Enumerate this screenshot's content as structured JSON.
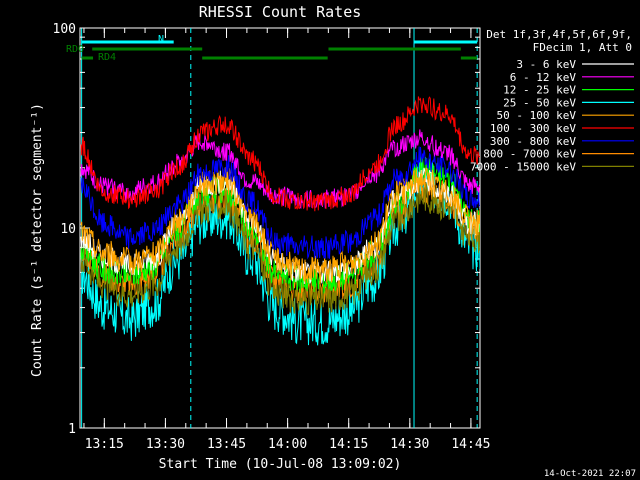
{
  "chart_data": {
    "type": "line",
    "title": "RHESSI Count Rates",
    "xlabel": "Start Time (10-Jul-08 13:09:02)",
    "ylabel": "Count Rate (s⁻¹ detector segment⁻¹)",
    "ylog": true,
    "ylim": [
      1,
      100
    ],
    "xlim_minutes_after_1309": [
      0,
      37.5
    ],
    "x_tick_labels": [
      "13:15",
      "13:30",
      "13:45",
      "14:00",
      "14:15",
      "14:30",
      "14:45"
    ],
    "x_tick_minutes": [
      5.97,
      20.97,
      35.97,
      50.97,
      65.97,
      80.97,
      95.97
    ],
    "y_tick_labels": [
      "1",
      "10",
      "100"
    ],
    "y_tick_values": [
      1,
      10,
      100
    ],
    "x_minutes_after_1309": [
      0,
      6,
      12,
      18,
      24,
      30,
      36,
      42,
      48,
      54,
      60,
      66,
      72,
      78,
      84,
      90,
      96
    ],
    "series": [
      {
        "name": "3 - 6 keV",
        "color": "#ffffff",
        "values": [
          9.0,
          7.2,
          6.5,
          7.0,
          10.5,
          16.5,
          17.0,
          11.0,
          6.8,
          6.0,
          6.0,
          6.3,
          8.0,
          14.5,
          17.5,
          15.0,
          10.5
        ]
      },
      {
        "name": "6 - 12 keV",
        "color": "#ff00ff",
        "values": [
          20.0,
          16.0,
          15.0,
          16.5,
          21.0,
          27.0,
          24.0,
          17.0,
          14.5,
          14.0,
          14.0,
          14.5,
          18.5,
          25.5,
          28.0,
          23.5,
          16.0
        ]
      },
      {
        "name": "12 - 25 keV",
        "color": "#00ff00",
        "values": [
          8.0,
          6.2,
          5.8,
          6.5,
          10.0,
          15.0,
          15.5,
          10.0,
          6.0,
          5.5,
          5.5,
          5.8,
          7.5,
          13.5,
          20.0,
          18.0,
          11.0
        ]
      },
      {
        "name": "25 - 50 keV",
        "color": "#00ffff",
        "values": [
          6.0,
          4.0,
          3.5,
          4.2,
          7.0,
          11.0,
          11.5,
          7.2,
          4.0,
          3.4,
          3.4,
          3.8,
          5.5,
          10.5,
          17.0,
          15.0,
          8.0
        ]
      },
      {
        "name": "50 - 100 keV",
        "color": "#ffa500",
        "values": [
          9.5,
          7.5,
          6.8,
          7.3,
          10.8,
          16.8,
          17.2,
          11.2,
          7.0,
          6.2,
          6.2,
          6.5,
          8.2,
          14.8,
          17.8,
          15.2,
          10.8
        ]
      },
      {
        "name": "100 - 300 keV",
        "color": "#ff0000",
        "values": [
          26.0,
          15.0,
          14.0,
          15.0,
          20.0,
          30.0,
          33.0,
          22.0,
          14.5,
          13.5,
          13.5,
          14.5,
          20.0,
          33.0,
          42.0,
          37.0,
          23.0
        ]
      },
      {
        "name": "300 - 800 keV",
        "color": "#0000ff",
        "values": [
          16.0,
          10.5,
          9.0,
          9.5,
          13.0,
          19.0,
          20.5,
          13.5,
          8.5,
          8.0,
          8.0,
          8.5,
          11.0,
          18.0,
          22.5,
          20.0,
          14.0
        ]
      },
      {
        "name": "800 - 7000 keV",
        "color": "#ff8c00",
        "values": [
          8.0,
          5.8,
          5.2,
          5.8,
          9.0,
          13.5,
          14.0,
          9.0,
          5.3,
          4.9,
          4.9,
          5.2,
          6.8,
          12.0,
          15.5,
          14.0,
          10.0
        ]
      },
      {
        "name": "7000 - 15000 keV",
        "color": "#808000",
        "values": [
          7.0,
          5.2,
          4.7,
          5.2,
          8.2,
          12.5,
          13.0,
          8.2,
          4.8,
          4.4,
          4.4,
          4.7,
          6.2,
          11.0,
          14.5,
          13.0,
          9.0
        ]
      }
    ],
    "legend_header": [
      "Det 1f,3f,4f,5f,6f,9f,",
      "FDecim 1, Att 0"
    ],
    "legend_position": "right",
    "flags": [
      {
        "label": "RD0",
        "color": "#008000"
      },
      {
        "label": "RD4",
        "color": "#008000"
      },
      {
        "label": "N",
        "color": "#00ffff"
      }
    ]
  },
  "footer": {
    "timestamp": "14-Oct-2021 22:07"
  }
}
